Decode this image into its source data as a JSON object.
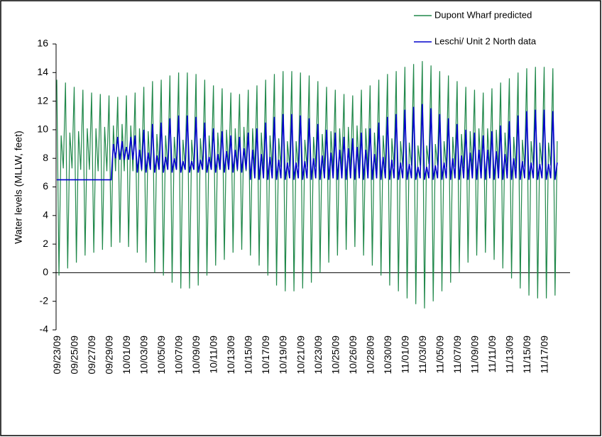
{
  "chart_data": {
    "type": "line",
    "y_label": "Water levels (MLLW, feet)",
    "ylim": [
      -4,
      16
    ],
    "yticks": [
      -4,
      -2,
      0,
      2,
      4,
      6,
      8,
      10,
      12,
      14,
      16
    ],
    "grid": false,
    "legend": "upper right",
    "categories": [
      "09/23/09",
      null,
      null,
      null,
      null,
      null,
      null,
      null,
      "09/25/09",
      null,
      null,
      null,
      null,
      null,
      null,
      null,
      "09/27/09",
      null,
      null,
      null,
      null,
      null,
      null,
      null,
      "09/29/09",
      null,
      null,
      null,
      null,
      null,
      null,
      null,
      "10/01/09",
      null,
      null,
      null,
      null,
      null,
      null,
      null,
      "10/03/09",
      null,
      null,
      null,
      null,
      null,
      null,
      null,
      "10/05/09",
      null,
      null,
      null,
      null,
      null,
      null,
      null,
      "10/07/09",
      null,
      null,
      null,
      null,
      null,
      null,
      null,
      "10/09/09",
      null,
      null,
      null,
      null,
      null,
      null,
      null,
      "10/11/09",
      null,
      null,
      null,
      null,
      null,
      null,
      null,
      "10/13/09",
      null,
      null,
      null,
      null,
      null,
      null,
      null,
      "10/15/09",
      null,
      null,
      null,
      null,
      null,
      null,
      null,
      "10/17/09",
      null,
      null,
      null,
      null,
      null,
      null,
      null,
      "10/19/09",
      null,
      null,
      null,
      null,
      null,
      null,
      null,
      "10/21/09",
      null,
      null,
      null,
      null,
      null,
      null,
      null,
      "10/23/09",
      null,
      null,
      null,
      null,
      null,
      null,
      null,
      "10/25/09",
      null,
      null,
      null,
      null,
      null,
      null,
      null,
      "10/26/09",
      null,
      null,
      null,
      null,
      null,
      null,
      null,
      "10/28/09",
      null,
      null,
      null,
      null,
      null,
      null,
      null,
      "10/30/09",
      null,
      null,
      null,
      null,
      null,
      null,
      null,
      "11/01/09",
      null,
      null,
      null,
      null,
      null,
      null,
      null,
      "11/03/09",
      null,
      null,
      null,
      null,
      null,
      null,
      null,
      "11/05/09",
      null,
      null,
      null,
      null,
      null,
      null,
      null,
      "11/07/09",
      null,
      null,
      null,
      null,
      null,
      null,
      null,
      "11/09/09",
      null,
      null,
      null,
      null,
      null,
      null,
      null,
      "11/11/09",
      null,
      null,
      null,
      null,
      null,
      null,
      null,
      "11/13/09",
      null,
      null,
      null,
      null,
      null,
      null,
      null,
      "11/15/09",
      null,
      null,
      null,
      null,
      null,
      null,
      null,
      "11/17/09",
      null,
      null,
      null,
      null,
      null,
      null
    ],
    "series": [
      {
        "name": "Dupont Wharf predicted",
        "color": "#20884a",
        "values": [
          13.5,
          -0.2,
          9.6,
          7.3,
          13.3,
          0.3,
          9.8,
          7.3,
          13.0,
          0.7,
          9.9,
          7.2,
          12.8,
          1.2,
          10.1,
          7.2,
          12.6,
          1.4,
          10.1,
          7.1,
          12.5,
          1.6,
          10.2,
          7.1,
          12.4,
          1.8,
          10.3,
          7.1,
          12.3,
          2.1,
          10.4,
          7.1,
          12.4,
          1.8,
          10.3,
          7.1,
          12.6,
          1.4,
          10.1,
          7.1,
          13.0,
          0.7,
          9.9,
          7.2,
          13.4,
          0.0,
          9.7,
          7.3,
          13.5,
          -0.2,
          9.6,
          7.3,
          13.8,
          -0.7,
          9.5,
          7.4,
          14.0,
          -1.1,
          9.3,
          7.4,
          14.0,
          -1.1,
          9.3,
          7.4,
          13.9,
          -0.9,
          9.4,
          7.4,
          13.5,
          -0.2,
          9.6,
          7.3,
          13.1,
          0.5,
          9.8,
          7.2,
          12.9,
          0.9,
          10.0,
          7.2,
          12.6,
          1.4,
          10.1,
          7.1,
          12.5,
          1.6,
          10.2,
          7.1,
          12.8,
          1.2,
          10.1,
          7.2,
          13.1,
          0.5,
          9.8,
          7.2,
          13.5,
          -0.2,
          9.6,
          7.3,
          13.9,
          -0.9,
          9.4,
          7.4,
          14.1,
          -1.3,
          9.2,
          7.4,
          14.1,
          -1.3,
          9.2,
          7.4,
          14.0,
          -1.1,
          9.3,
          7.4,
          13.8,
          -0.7,
          9.5,
          7.4,
          13.4,
          0.0,
          9.7,
          7.3,
          13.0,
          0.7,
          9.9,
          7.2,
          12.8,
          1.2,
          10.1,
          7.2,
          12.5,
          1.6,
          10.2,
          7.1,
          12.4,
          1.8,
          10.3,
          7.1,
          12.8,
          1.2,
          10.1,
          7.2,
          13.1,
          0.5,
          9.8,
          7.2,
          13.5,
          -0.2,
          9.6,
          7.3,
          13.9,
          -0.9,
          9.4,
          7.4,
          14.1,
          -1.3,
          9.2,
          7.4,
          14.4,
          -1.8,
          9.1,
          7.5,
          14.6,
          -2.2,
          8.9,
          7.5,
          14.8,
          -2.5,
          8.9,
          7.6,
          14.5,
          -2.0,
          9.0,
          7.5,
          14.1,
          -1.3,
          9.2,
          7.4,
          13.8,
          -0.7,
          9.5,
          7.4,
          13.4,
          0.0,
          9.7,
          7.3,
          13.0,
          0.7,
          9.9,
          7.2,
          12.8,
          1.2,
          10.1,
          7.2,
          12.6,
          1.4,
          10.1,
          7.1,
          12.9,
          0.9,
          10.0,
          7.2,
          13.3,
          0.3,
          9.8,
          7.3,
          13.6,
          -0.4,
          9.5,
          7.3,
          14.0,
          -1.1,
          9.3,
          7.4,
          14.3,
          -1.6,
          9.2,
          7.5,
          14.4,
          -1.8,
          9.1,
          7.5,
          14.4,
          -1.8,
          9.1,
          7.5,
          14.3,
          -1.6,
          9.2
        ]
      },
      {
        "name": "Leschi/ Unit 2 North data",
        "color": "#0000cc",
        "values": [
          6.5,
          6.5,
          6.5,
          6.5,
          6.5,
          6.5,
          6.5,
          6.5,
          6.5,
          6.5,
          6.5,
          6.5,
          6.5,
          6.5,
          6.5,
          6.5,
          6.5,
          6.5,
          6.5,
          6.5,
          6.5,
          6.5,
          6.5,
          6.5,
          6.5,
          6.5,
          9.0,
          8.0,
          9.5,
          7.9,
          9.2,
          7.9,
          8.8,
          7.9,
          9.5,
          7.9,
          9.6,
          7.0,
          8.6,
          7.2,
          10.0,
          7.0,
          8.4,
          7.2,
          10.4,
          7.0,
          8.2,
          7.2,
          10.5,
          7.0,
          8.1,
          7.2,
          10.8,
          7.0,
          8.0,
          7.2,
          11.0,
          7.0,
          7.8,
          7.2,
          11.0,
          7.0,
          7.8,
          7.2,
          10.9,
          7.0,
          7.9,
          7.2,
          10.5,
          7.0,
          8.1,
          7.2,
          10.1,
          7.0,
          8.3,
          7.2,
          9.9,
          7.0,
          8.5,
          7.2,
          9.6,
          7.0,
          8.6,
          7.2,
          9.5,
          7.0,
          8.7,
          7.2,
          9.8,
          6.5,
          8.6,
          6.6,
          10.1,
          6.5,
          8.3,
          6.6,
          10.5,
          6.5,
          8.1,
          6.6,
          10.9,
          6.5,
          7.9,
          6.6,
          11.1,
          6.5,
          7.7,
          6.6,
          11.1,
          6.5,
          7.7,
          6.6,
          11.0,
          6.5,
          7.8,
          6.6,
          10.8,
          6.5,
          8.0,
          6.6,
          10.4,
          6.5,
          8.2,
          6.6,
          10.0,
          6.5,
          8.4,
          6.6,
          9.8,
          6.5,
          8.6,
          6.6,
          9.5,
          6.5,
          8.7,
          6.6,
          9.4,
          6.5,
          8.8,
          6.6,
          9.8,
          6.5,
          8.6,
          6.6,
          10.1,
          6.5,
          8.3,
          6.6,
          10.5,
          6.5,
          8.1,
          6.6,
          10.9,
          6.5,
          7.9,
          6.6,
          11.1,
          6.5,
          7.7,
          6.6,
          11.4,
          6.5,
          7.6,
          6.6,
          11.6,
          6.5,
          7.4,
          6.6,
          11.8,
          6.5,
          7.4,
          6.6,
          11.5,
          6.5,
          7.5,
          6.6,
          11.1,
          6.5,
          7.7,
          6.6,
          10.8,
          6.5,
          8.0,
          6.6,
          10.4,
          6.5,
          8.2,
          6.6,
          10.0,
          6.5,
          8.4,
          6.6,
          9.8,
          6.5,
          8.6,
          6.6,
          9.6,
          6.5,
          8.6,
          6.6,
          9.9,
          6.5,
          8.5,
          6.6,
          10.3,
          6.5,
          8.3,
          6.6,
          10.6,
          6.5,
          8.0,
          6.6,
          11.0,
          6.5,
          7.8,
          6.6,
          11.3,
          6.5,
          7.7,
          6.6,
          11.4,
          6.5,
          7.6,
          6.6,
          11.4,
          6.5,
          7.6,
          6.6,
          11.3,
          6.5,
          7.7
        ]
      }
    ]
  }
}
